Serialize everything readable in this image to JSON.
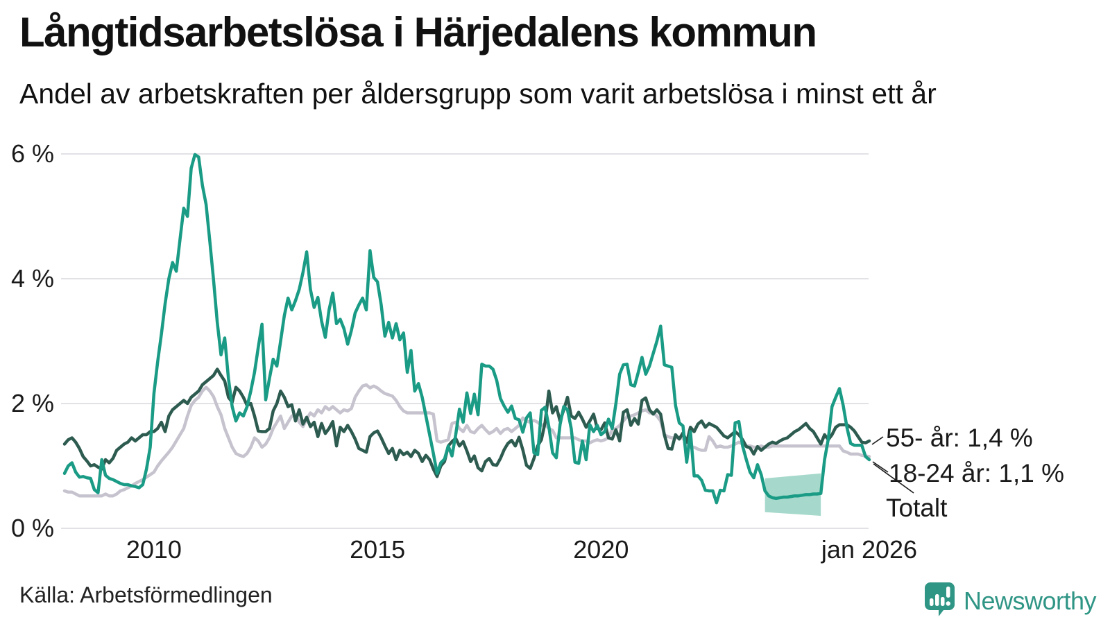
{
  "title": "Långtidsarbetslösa i Härjedalens kommun",
  "subtitle": "Andel av arbetskraften per åldersgrupp som varit arbetslösa i minst ett år",
  "source": "Källa: Arbetsförmedlingen",
  "brand": {
    "name": "Newsworthy",
    "color": "#2f9585",
    "icon": "speech-bubble-bar-chart-exclamation-icon"
  },
  "colors": {
    "series_18_24": "#1a9b85",
    "series_55": "#2d5b4f",
    "series_total": "#c6c3ce",
    "uncertainty_band": "#a6d9cb",
    "gridline": "#e2e2e6",
    "text": "#1a1a1a"
  },
  "chart_data": {
    "type": "line",
    "title": "Långtidsarbetslösa i Härjedalens kommun",
    "subtitle": "Andel av arbetskraften per åldersgrupp som varit arbetslösa i minst ett år",
    "xlabel": "",
    "ylabel": "",
    "unit": "% av arbetskraften",
    "freq": "monthly",
    "x_start": "2008-01",
    "x_end": "2026-01",
    "ylim": [
      0,
      6.3
    ],
    "grid": true,
    "legend_position": "end-of-line-labels",
    "y_ticks": [
      {
        "value": 6,
        "label": "6 %"
      },
      {
        "value": 4,
        "label": "4 %"
      },
      {
        "value": 2,
        "label": "2 %"
      },
      {
        "value": 0,
        "label": "0 %"
      }
    ],
    "x_ticks": [
      {
        "month_index": 24,
        "label": "2010"
      },
      {
        "month_index": 84,
        "label": "2015"
      },
      {
        "month_index": 144,
        "label": "2020"
      },
      {
        "month_index": 216,
        "label": "jan 2026"
      }
    ],
    "end_labels": [
      "55- år: 1,4 %",
      "18-24 år: 1,1 %",
      "Totalt"
    ],
    "latest_values": {
      "55- år": "1,4 %",
      "18-24 år": "1,1 %"
    },
    "uncertainty_band": {
      "series": "18-24 år",
      "color": "#a6d9cb",
      "start_month_index": 188,
      "end_month_index": 203,
      "top_start": 0.8,
      "top_end": 0.88,
      "bottom_start": 0.26,
      "bottom_end": 0.2
    },
    "series": [
      {
        "name": "Totalt",
        "color": "#c6c3ce",
        "values": [
          0.6,
          0.58,
          0.58,
          0.55,
          0.52,
          0.52,
          0.52,
          0.52,
          0.52,
          0.52,
          0.52,
          0.55,
          0.52,
          0.52,
          0.55,
          0.6,
          0.62,
          0.65,
          0.68,
          0.72,
          0.75,
          0.78,
          0.82,
          0.86,
          0.9,
          1.0,
          1.08,
          1.15,
          1.22,
          1.3,
          1.4,
          1.5,
          1.6,
          1.8,
          1.97,
          2.05,
          2.1,
          2.2,
          2.26,
          2.2,
          2.11,
          1.95,
          1.82,
          1.6,
          1.45,
          1.3,
          1.2,
          1.17,
          1.15,
          1.2,
          1.3,
          1.45,
          1.4,
          1.3,
          1.35,
          1.45,
          1.6,
          1.7,
          1.8,
          1.6,
          1.7,
          1.8,
          1.82,
          1.7,
          1.63,
          1.75,
          1.85,
          1.8,
          1.9,
          1.85,
          1.95,
          1.9,
          1.95,
          1.9,
          1.85,
          1.9,
          1.88,
          1.92,
          2.1,
          2.2,
          2.28,
          2.3,
          2.25,
          2.28,
          2.25,
          2.2,
          2.16,
          2.14,
          2.12,
          2.05,
          1.95,
          1.88,
          1.85,
          1.85,
          1.85,
          1.85,
          1.85,
          1.85,
          1.85,
          1.83,
          1.4,
          1.38,
          1.4,
          1.42,
          1.68,
          1.7,
          1.6,
          1.55,
          1.65,
          1.55,
          1.53,
          1.6,
          1.65,
          1.58,
          1.52,
          1.55,
          1.6,
          1.52,
          1.58,
          1.6,
          1.55,
          1.6,
          1.65,
          1.77,
          1.72,
          1.7,
          1.73,
          1.7,
          1.65,
          1.67,
          1.6,
          1.57,
          1.45,
          1.45,
          1.45,
          1.45,
          1.45,
          1.45,
          1.42,
          1.4,
          1.4,
          1.37,
          1.4,
          1.42,
          1.4,
          1.42,
          1.45,
          1.58,
          1.6,
          1.65,
          1.72,
          1.79,
          1.8,
          1.82,
          1.85,
          1.88,
          1.9,
          1.85,
          1.85,
          1.8,
          1.72,
          1.5,
          1.47,
          1.45,
          1.45,
          1.45,
          1.45,
          1.33,
          1.3,
          1.3,
          1.27,
          1.25,
          1.25,
          1.47,
          1.4,
          1.3,
          1.32,
          1.3,
          1.3,
          1.32,
          1.35,
          1.38,
          1.35,
          1.32,
          1.32,
          1.3,
          1.3,
          1.32,
          1.3,
          1.3,
          1.32,
          1.32,
          1.32,
          1.32,
          1.32,
          1.32,
          1.32,
          1.32,
          1.32,
          1.32,
          1.32,
          1.32,
          1.32,
          1.32,
          1.32,
          1.32,
          1.32,
          1.32,
          1.32,
          1.24,
          1.22,
          1.19,
          1.19,
          1.19,
          1.17,
          1.16,
          1.15
        ]
      },
      {
        "name": "55- år",
        "color": "#2d5b4f",
        "values": [
          1.35,
          1.42,
          1.45,
          1.38,
          1.28,
          1.15,
          1.08,
          1.0,
          1.02,
          0.98,
          0.95,
          1.1,
          1.05,
          1.12,
          1.25,
          1.3,
          1.35,
          1.38,
          1.45,
          1.4,
          1.45,
          1.5,
          1.5,
          1.55,
          1.55,
          1.6,
          1.7,
          1.55,
          1.8,
          1.9,
          1.95,
          2.0,
          2.05,
          2.0,
          2.1,
          2.15,
          2.2,
          2.3,
          2.35,
          2.4,
          2.45,
          2.55,
          2.45,
          2.36,
          2.1,
          2.02,
          2.26,
          2.2,
          2.1,
          1.97,
          2.0,
          1.8,
          1.56,
          1.55,
          1.55,
          1.6,
          1.88,
          2.0,
          2.2,
          2.1,
          1.95,
          1.98,
          1.72,
          1.9,
          1.67,
          1.78,
          1.63,
          1.7,
          1.47,
          1.68,
          1.52,
          1.6,
          1.71,
          1.32,
          1.62,
          1.55,
          1.65,
          1.55,
          1.43,
          1.28,
          1.25,
          1.22,
          1.47,
          1.53,
          1.56,
          1.45,
          1.32,
          1.2,
          1.28,
          1.1,
          1.25,
          1.18,
          1.22,
          1.15,
          1.25,
          1.2,
          1.07,
          1.17,
          1.1,
          0.95,
          0.83,
          1.0,
          1.07,
          1.32,
          1.39,
          1.44,
          1.32,
          1.39,
          1.24,
          1.07,
          1.16,
          0.97,
          0.92,
          1.07,
          1.12,
          1.02,
          1.01,
          1.12,
          1.26,
          1.36,
          1.41,
          1.32,
          1.46,
          1.26,
          1.01,
          0.96,
          1.12,
          1.32,
          1.42,
          1.7,
          2.2,
          1.85,
          1.95,
          1.72,
          1.9,
          2.1,
          1.8,
          1.76,
          1.86,
          1.75,
          1.62,
          1.72,
          1.83,
          1.6,
          1.58,
          1.69,
          1.45,
          1.43,
          1.58,
          1.4,
          1.86,
          1.9,
          1.65,
          1.76,
          1.67,
          2.05,
          2.09,
          1.9,
          1.83,
          1.9,
          1.83,
          1.5,
          1.28,
          1.27,
          1.5,
          1.43,
          1.53,
          1.38,
          1.62,
          1.55,
          1.67,
          1.72,
          1.62,
          1.68,
          1.65,
          1.62,
          1.55,
          1.48,
          1.45,
          1.5,
          1.55,
          1.5,
          1.42,
          1.31,
          1.29,
          1.19,
          1.31,
          1.25,
          1.3,
          1.35,
          1.38,
          1.36,
          1.4,
          1.43,
          1.45,
          1.5,
          1.55,
          1.58,
          1.63,
          1.68,
          1.6,
          1.55,
          1.45,
          1.35,
          1.5,
          1.42,
          1.5,
          1.62,
          1.66,
          1.66,
          1.66,
          1.62,
          1.56,
          1.47,
          1.38,
          1.37,
          1.4
        ]
      },
      {
        "name": "18-24 år",
        "color": "#1a9b85",
        "values": [
          0.88,
          1.0,
          1.05,
          0.9,
          0.82,
          0.83,
          0.81,
          0.8,
          0.62,
          0.57,
          1.1,
          0.85,
          0.8,
          0.78,
          0.75,
          0.72,
          0.7,
          0.7,
          0.68,
          0.67,
          0.65,
          0.7,
          0.95,
          1.3,
          2.16,
          2.67,
          3.11,
          3.6,
          4.0,
          4.26,
          4.12,
          4.63,
          5.13,
          5.0,
          5.77,
          5.99,
          5.95,
          5.5,
          5.19,
          4.6,
          3.98,
          3.3,
          2.78,
          3.05,
          2.4,
          1.95,
          1.72,
          1.85,
          1.8,
          1.95,
          2.2,
          2.5,
          2.9,
          3.27,
          2.06,
          2.4,
          2.71,
          2.6,
          3.0,
          3.41,
          3.69,
          3.5,
          3.65,
          3.83,
          4.1,
          4.43,
          3.83,
          3.54,
          3.7,
          3.32,
          3.06,
          3.5,
          3.77,
          3.28,
          3.35,
          3.2,
          2.95,
          3.17,
          3.45,
          3.58,
          3.69,
          3.5,
          4.45,
          4.02,
          3.95,
          3.58,
          3.08,
          3.3,
          3.05,
          3.28,
          3.02,
          3.13,
          2.5,
          2.85,
          2.2,
          2.32,
          2.1,
          1.8,
          1.5,
          1.2,
          0.88,
          1.05,
          1.11,
          1.32,
          1.16,
          1.5,
          1.91,
          1.7,
          2.17,
          1.84,
          2.15,
          1.82,
          2.63,
          2.6,
          2.6,
          2.55,
          2.37,
          2.08,
          1.96,
          1.86,
          1.96,
          1.76,
          1.74,
          1.54,
          1.77,
          1.85,
          1.21,
          1.18,
          1.89,
          1.94,
          1.63,
          1.21,
          1.13,
          1.66,
          1.95,
          1.9,
          1.6,
          1.06,
          1.04,
          1.4,
          1.1,
          1.66,
          1.55,
          1.65,
          1.5,
          1.55,
          1.75,
          1.6,
          2.0,
          2.47,
          2.62,
          2.63,
          2.3,
          2.28,
          2.5,
          2.74,
          2.47,
          2.6,
          2.8,
          3.0,
          3.24,
          2.62,
          2.6,
          2.58,
          1.97,
          1.69,
          1.64,
          1.06,
          1.55,
          0.84,
          0.84,
          0.77,
          0.61,
          0.6,
          0.6,
          0.41,
          0.61,
          0.6,
          0.86,
          0.85,
          1.69,
          1.71,
          1.32,
          1.1,
          0.9,
          0.81,
          1.02,
          0.86,
          0.6,
          0.52,
          0.49,
          0.48,
          0.49,
          0.5,
          0.5,
          0.51,
          0.52,
          0.52,
          0.53,
          0.54,
          0.54,
          0.55,
          0.55,
          0.56,
          1.1,
          1.43,
          1.95,
          2.1,
          2.24,
          1.97,
          1.62,
          1.36,
          1.33,
          1.33,
          1.33,
          1.15,
          1.1
        ]
      }
    ]
  }
}
